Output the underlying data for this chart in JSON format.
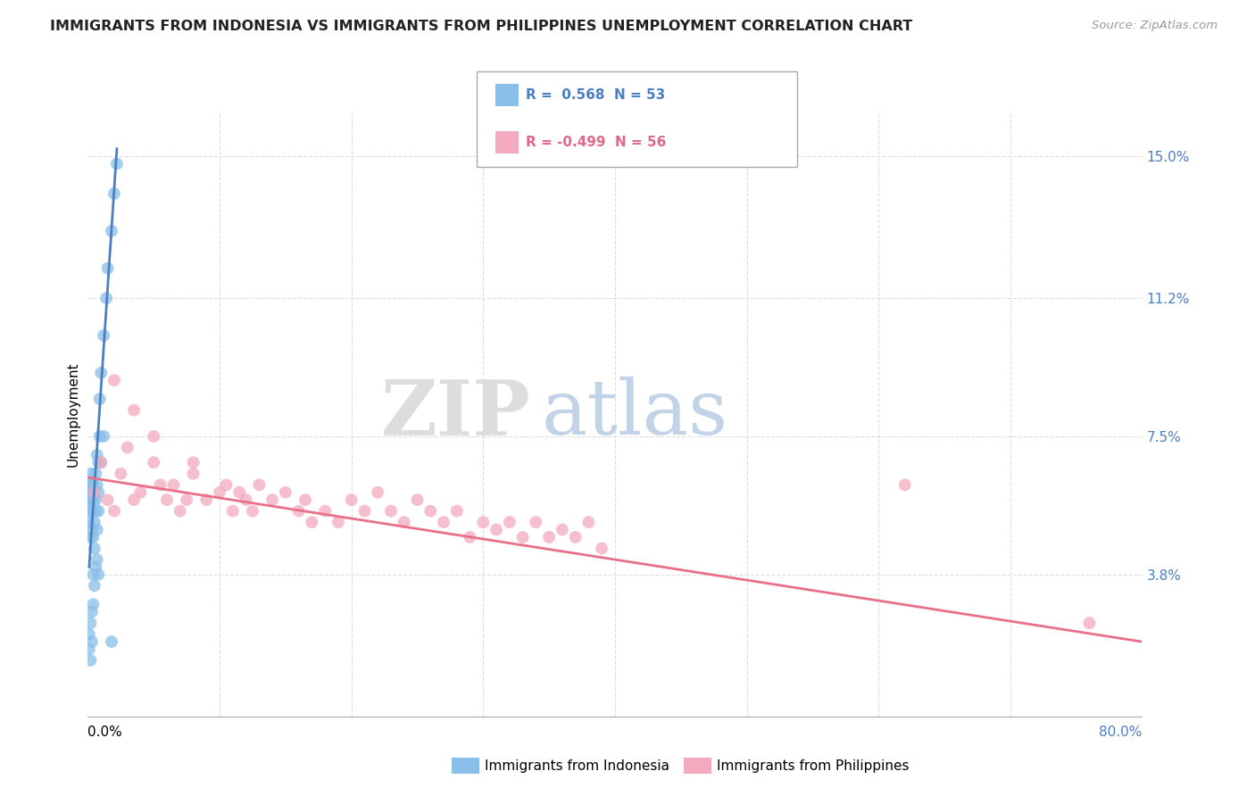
{
  "title": "IMMIGRANTS FROM INDONESIA VS IMMIGRANTS FROM PHILIPPINES UNEMPLOYMENT CORRELATION CHART",
  "source": "Source: ZipAtlas.com",
  "ylabel": "Unemployment",
  "ytick_values": [
    0.038,
    0.075,
    0.112,
    0.15
  ],
  "ytick_labels": [
    "3.8%",
    "7.5%",
    "11.2%",
    "15.0%"
  ],
  "xlim": [
    0.0,
    0.8
  ],
  "ylim": [
    0.0,
    0.162
  ],
  "legend_label1": "Immigrants from Indonesia",
  "legend_label2": "Immigrants from Philippines",
  "watermark_zip": "ZIP",
  "watermark_atlas": "atlas",
  "blue_color": "#89bfe8",
  "pink_color": "#f4aabe",
  "blue_line_color": "#4a7fc1",
  "pink_line_color": "#e8708a",
  "title_color": "#222222",
  "source_color": "#999999",
  "grid_color": "#dddddd",
  "right_label_color": "#4a7fc1",
  "blue_scatter": [
    [
      0.001,
      0.058
    ],
    [
      0.001,
      0.052
    ],
    [
      0.002,
      0.06
    ],
    [
      0.002,
      0.062
    ],
    [
      0.002,
      0.055
    ],
    [
      0.002,
      0.048
    ],
    [
      0.002,
      0.058
    ],
    [
      0.002,
      0.065
    ],
    [
      0.003,
      0.058
    ],
    [
      0.003,
      0.062
    ],
    [
      0.003,
      0.055
    ],
    [
      0.003,
      0.06
    ],
    [
      0.003,
      0.05
    ],
    [
      0.004,
      0.058
    ],
    [
      0.004,
      0.062
    ],
    [
      0.004,
      0.048
    ],
    [
      0.004,
      0.055
    ],
    [
      0.005,
      0.06
    ],
    [
      0.005,
      0.052
    ],
    [
      0.005,
      0.045
    ],
    [
      0.006,
      0.058
    ],
    [
      0.006,
      0.065
    ],
    [
      0.006,
      0.055
    ],
    [
      0.007,
      0.062
    ],
    [
      0.007,
      0.07
    ],
    [
      0.007,
      0.05
    ],
    [
      0.008,
      0.06
    ],
    [
      0.008,
      0.068
    ],
    [
      0.008,
      0.055
    ],
    [
      0.009,
      0.075
    ],
    [
      0.009,
      0.085
    ],
    [
      0.01,
      0.092
    ],
    [
      0.01,
      0.068
    ],
    [
      0.012,
      0.102
    ],
    [
      0.012,
      0.075
    ],
    [
      0.014,
      0.112
    ],
    [
      0.015,
      0.12
    ],
    [
      0.018,
      0.13
    ],
    [
      0.02,
      0.14
    ],
    [
      0.022,
      0.148
    ],
    [
      0.001,
      0.022
    ],
    [
      0.001,
      0.018
    ],
    [
      0.002,
      0.025
    ],
    [
      0.002,
      0.015
    ],
    [
      0.003,
      0.02
    ],
    [
      0.003,
      0.028
    ],
    [
      0.004,
      0.03
    ],
    [
      0.004,
      0.038
    ],
    [
      0.005,
      0.035
    ],
    [
      0.006,
      0.04
    ],
    [
      0.007,
      0.042
    ],
    [
      0.008,
      0.038
    ],
    [
      0.018,
      0.02
    ]
  ],
  "pink_scatter": [
    [
      0.005,
      0.06
    ],
    [
      0.01,
      0.068
    ],
    [
      0.015,
      0.058
    ],
    [
      0.02,
      0.055
    ],
    [
      0.025,
      0.065
    ],
    [
      0.03,
      0.072
    ],
    [
      0.035,
      0.058
    ],
    [
      0.04,
      0.06
    ],
    [
      0.05,
      0.068
    ],
    [
      0.055,
      0.062
    ],
    [
      0.06,
      0.058
    ],
    [
      0.065,
      0.062
    ],
    [
      0.07,
      0.055
    ],
    [
      0.075,
      0.058
    ],
    [
      0.08,
      0.065
    ],
    [
      0.09,
      0.058
    ],
    [
      0.1,
      0.06
    ],
    [
      0.105,
      0.062
    ],
    [
      0.11,
      0.055
    ],
    [
      0.115,
      0.06
    ],
    [
      0.12,
      0.058
    ],
    [
      0.125,
      0.055
    ],
    [
      0.13,
      0.062
    ],
    [
      0.14,
      0.058
    ],
    [
      0.15,
      0.06
    ],
    [
      0.16,
      0.055
    ],
    [
      0.165,
      0.058
    ],
    [
      0.17,
      0.052
    ],
    [
      0.18,
      0.055
    ],
    [
      0.19,
      0.052
    ],
    [
      0.2,
      0.058
    ],
    [
      0.21,
      0.055
    ],
    [
      0.22,
      0.06
    ],
    [
      0.23,
      0.055
    ],
    [
      0.24,
      0.052
    ],
    [
      0.25,
      0.058
    ],
    [
      0.26,
      0.055
    ],
    [
      0.27,
      0.052
    ],
    [
      0.28,
      0.055
    ],
    [
      0.29,
      0.048
    ],
    [
      0.3,
      0.052
    ],
    [
      0.31,
      0.05
    ],
    [
      0.32,
      0.052
    ],
    [
      0.33,
      0.048
    ],
    [
      0.34,
      0.052
    ],
    [
      0.35,
      0.048
    ],
    [
      0.36,
      0.05
    ],
    [
      0.37,
      0.048
    ],
    [
      0.38,
      0.052
    ],
    [
      0.39,
      0.045
    ],
    [
      0.02,
      0.09
    ],
    [
      0.035,
      0.082
    ],
    [
      0.05,
      0.075
    ],
    [
      0.08,
      0.068
    ],
    [
      0.62,
      0.062
    ],
    [
      0.76,
      0.025
    ]
  ],
  "blue_trend_x": [
    0.001,
    0.022
  ],
  "blue_trend_y": [
    0.04,
    0.152
  ],
  "pink_trend_x": [
    0.0,
    0.8
  ],
  "pink_trend_y": [
    0.064,
    0.02
  ]
}
